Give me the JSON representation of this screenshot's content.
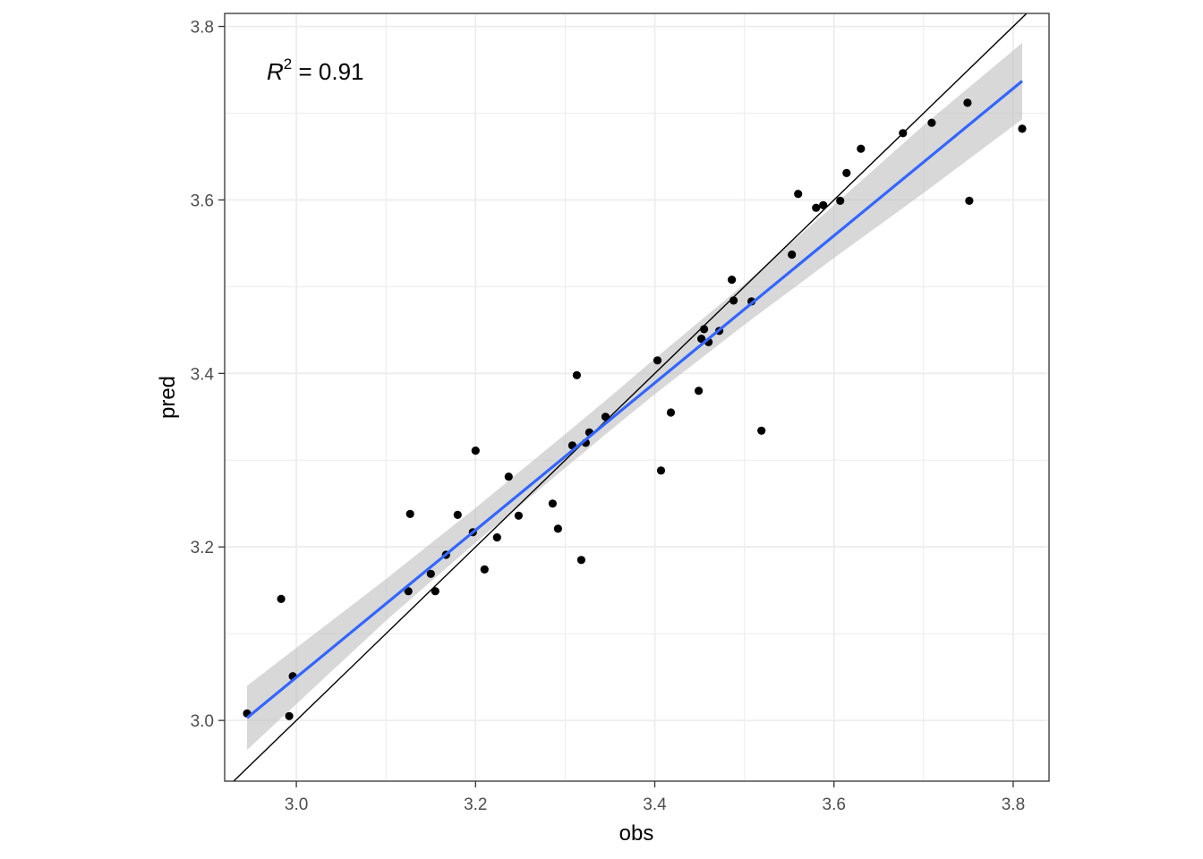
{
  "chart_data": {
    "type": "scatter",
    "xlabel": "obs",
    "ylabel": "pred",
    "xlim": [
      2.92,
      3.84
    ],
    "ylim": [
      2.93,
      3.815
    ],
    "x_ticks": [
      "3.0",
      "3.2",
      "3.4",
      "3.6",
      "3.8"
    ],
    "y_ticks": [
      "3.0",
      "3.2",
      "3.4",
      "3.6",
      "3.8"
    ],
    "x_tick_values": [
      3.0,
      3.2,
      3.4,
      3.6,
      3.8
    ],
    "y_tick_values": [
      3.0,
      3.2,
      3.4,
      3.6,
      3.8
    ],
    "grid": true,
    "annotation": {
      "symbol": "R",
      "superscript": "2",
      "text": " = 0.91"
    },
    "identity_line": true,
    "fit": {
      "x": [
        2.945,
        3.81
      ],
      "y": [
        3.003,
        3.737
      ]
    },
    "ribbon": {
      "x": [
        2.945,
        3.1,
        3.2,
        3.3,
        3.35,
        3.4,
        3.5,
        3.6,
        3.7,
        3.81
      ],
      "lower": [
        2.966,
        3.115,
        3.205,
        3.291,
        3.334,
        3.376,
        3.456,
        3.533,
        3.608,
        3.693
      ],
      "upper": [
        3.04,
        3.163,
        3.245,
        3.33,
        3.373,
        3.417,
        3.503,
        3.594,
        3.686,
        3.781
      ]
    },
    "colors": {
      "points": "#000000",
      "fit": "#3366ff",
      "ribbon": "#bebebe",
      "identity": "#000000",
      "grid": "#ebebeb"
    },
    "points": [
      [
        2.945,
        3.008
      ],
      [
        2.983,
        3.14
      ],
      [
        2.992,
        3.005
      ],
      [
        2.996,
        3.051
      ],
      [
        3.125,
        3.149
      ],
      [
        3.127,
        3.238
      ],
      [
        3.15,
        3.169
      ],
      [
        3.155,
        3.149
      ],
      [
        3.167,
        3.191
      ],
      [
        3.18,
        3.237
      ],
      [
        3.197,
        3.217
      ],
      [
        3.2,
        3.311
      ],
      [
        3.21,
        3.174
      ],
      [
        3.224,
        3.211
      ],
      [
        3.237,
        3.281
      ],
      [
        3.248,
        3.236
      ],
      [
        3.286,
        3.25
      ],
      [
        3.292,
        3.221
      ],
      [
        3.308,
        3.317
      ],
      [
        3.313,
        3.398
      ],
      [
        3.318,
        3.185
      ],
      [
        3.323,
        3.32
      ],
      [
        3.327,
        3.332
      ],
      [
        3.345,
        3.35
      ],
      [
        3.403,
        3.415
      ],
      [
        3.407,
        3.288
      ],
      [
        3.418,
        3.355
      ],
      [
        3.449,
        3.38
      ],
      [
        3.452,
        3.44
      ],
      [
        3.455,
        3.451
      ],
      [
        3.46,
        3.436
      ],
      [
        3.472,
        3.449
      ],
      [
        3.486,
        3.508
      ],
      [
        3.488,
        3.484
      ],
      [
        3.508,
        3.483
      ],
      [
        3.519,
        3.334
      ],
      [
        3.553,
        3.537
      ],
      [
        3.56,
        3.607
      ],
      [
        3.58,
        3.591
      ],
      [
        3.588,
        3.594
      ],
      [
        3.607,
        3.599
      ],
      [
        3.614,
        3.631
      ],
      [
        3.63,
        3.659
      ],
      [
        3.677,
        3.677
      ],
      [
        3.709,
        3.689
      ],
      [
        3.749,
        3.712
      ],
      [
        3.751,
        3.599
      ],
      [
        3.81,
        3.682
      ]
    ]
  }
}
